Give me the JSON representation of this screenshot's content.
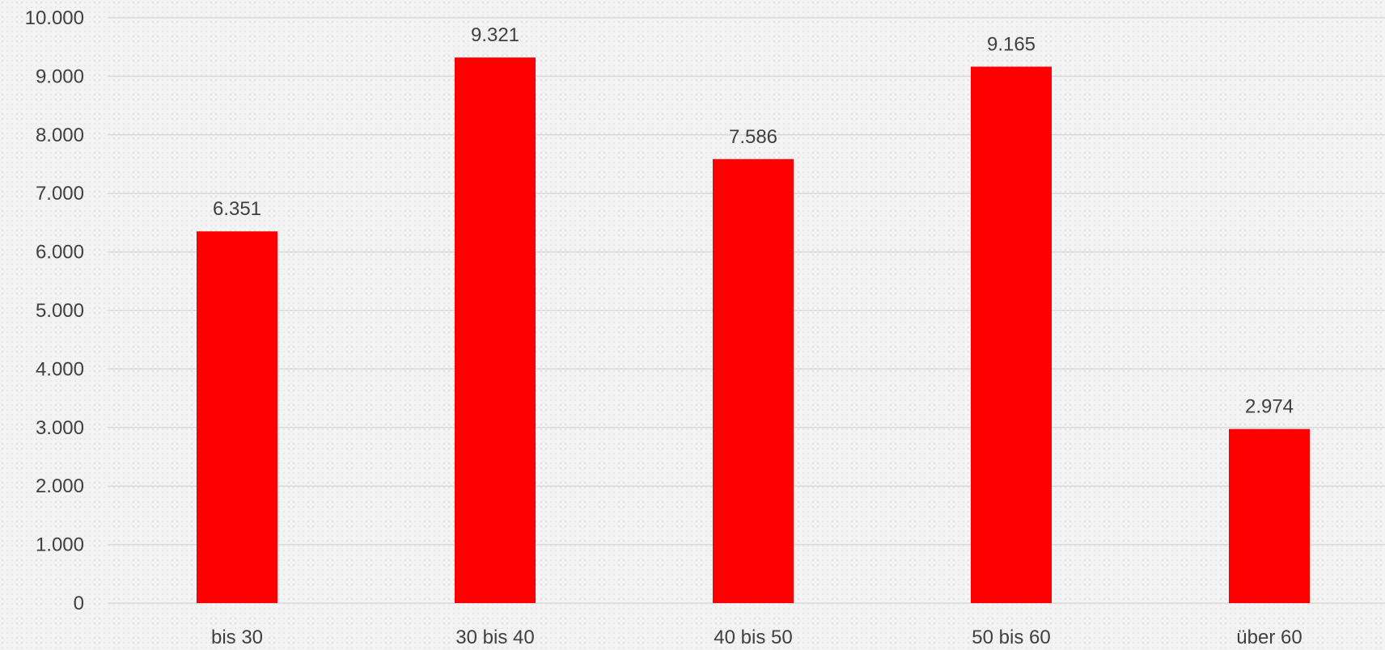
{
  "chart_data": {
    "type": "bar",
    "categories": [
      "bis 30",
      "30 bis 40",
      "40 bis 50",
      "50 bis 60",
      "über 60"
    ],
    "values": [
      6351,
      9321,
      7586,
      9165,
      2974
    ],
    "value_labels": [
      "6.351",
      "9.321",
      "7.586",
      "9.165",
      "2.974"
    ],
    "ylim": [
      0,
      10000
    ],
    "yticks": [
      0,
      1000,
      2000,
      3000,
      4000,
      5000,
      6000,
      7000,
      8000,
      9000,
      10000
    ],
    "ytick_labels": [
      "0",
      "1.000",
      "2.000",
      "3.000",
      "4.000",
      "5.000",
      "6.000",
      "7.000",
      "8.000",
      "9.000",
      "10.000"
    ],
    "grid": true,
    "legend": "none",
    "bar_color": "#ff0000",
    "grid_color": "#d9d9d9",
    "text_color": "#404040"
  }
}
